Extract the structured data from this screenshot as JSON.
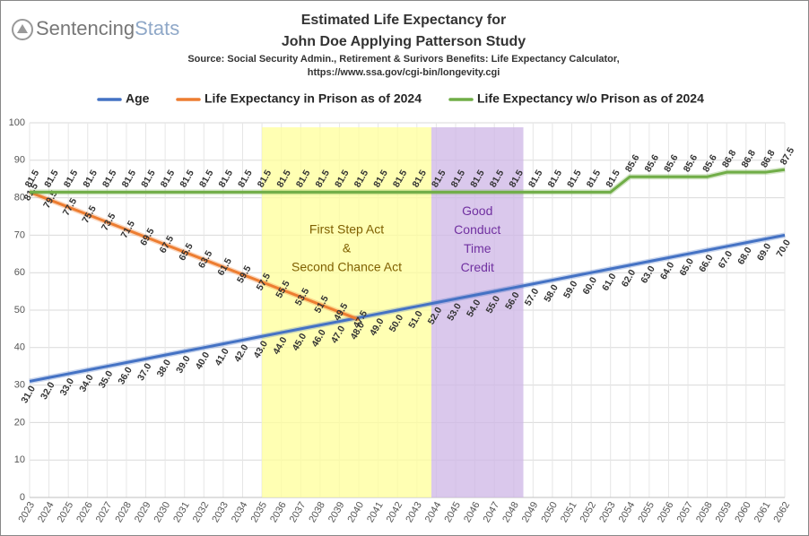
{
  "chart_data": {
    "type": "line",
    "logo": [
      "Sentencing",
      "Stats"
    ],
    "title": [
      "Estimated Life Expectancy for",
      "John Doe Applying Patterson Study"
    ],
    "subtitle": [
      "Source: Social Security Admin., Retirement & Surivors Benefits: Life Expectancy Calculator,",
      "https://www.ssa.gov/cgi-bin/longevity.cgi"
    ],
    "x": [
      2023,
      2024,
      2025,
      2026,
      2027,
      2028,
      2029,
      2030,
      2031,
      2032,
      2033,
      2034,
      2035,
      2036,
      2037,
      2038,
      2039,
      2040,
      2041,
      2042,
      2043,
      2044,
      2045,
      2046,
      2047,
      2048,
      2049,
      2050,
      2051,
      2052,
      2053,
      2054,
      2055,
      2056,
      2057,
      2058,
      2059,
      2060,
      2061,
      2062
    ],
    "xlim": [
      2023,
      2062
    ],
    "xticks": [
      2023,
      2024,
      2025,
      2026,
      2027,
      2028,
      2029,
      2030,
      2031,
      2032,
      2033,
      2034,
      2035,
      2036,
      2037,
      2038,
      2039,
      2040,
      2041,
      2042,
      2043,
      2044,
      2045,
      2046,
      2047,
      2048,
      2049,
      2050,
      2051,
      2052,
      2053,
      2054,
      2055,
      2056,
      2057,
      2058,
      2059,
      2060,
      2061,
      2062
    ],
    "ylim": [
      0,
      100
    ],
    "yticks": [
      0,
      10,
      20,
      30,
      40,
      50,
      60,
      70,
      80,
      90,
      100
    ],
    "grid": true,
    "legend": "top",
    "regions": [
      {
        "from": 2035,
        "to": 2043.75,
        "color": "#ffff99",
        "text_color": "#7f6000",
        "label": [
          "First Step Act",
          "&",
          "Second Chance Act"
        ]
      },
      {
        "from": 2043.75,
        "to": 2048.5,
        "color": "#cdb6e6",
        "text_color": "#7030a0",
        "label": [
          "Good",
          "Conduct",
          "Time",
          "Credit"
        ]
      }
    ],
    "series": [
      {
        "name": "Age",
        "color": "#4472c4",
        "values": [
          31,
          32,
          33,
          34,
          35,
          36,
          37,
          38,
          39,
          40,
          41,
          42,
          43,
          44,
          45,
          46,
          47,
          48,
          49,
          50,
          51,
          52,
          53,
          54,
          55,
          56,
          57,
          58,
          59,
          60,
          61,
          62,
          63,
          64,
          65,
          66,
          67,
          68,
          69,
          70
        ],
        "value_labels": [
          "31.0",
          "32.0",
          "33.0",
          "34.0",
          "35.0",
          "36.0",
          "37.0",
          "38.0",
          "39.0",
          "40.0",
          "41.0",
          "42.0",
          "43.0",
          "44.0",
          "45.0",
          "46.0",
          "47.0",
          "48.0",
          "49.0",
          "50.0",
          "51.0",
          "52.0",
          "53.0",
          "54.0",
          "55.0",
          "56.0",
          "57.0",
          "58.0",
          "59.0",
          "60.0",
          "61.0",
          "62.0",
          "63.0",
          "64.0",
          "65.0",
          "66.0",
          "67.0",
          "68.0",
          "69.0",
          "70.0"
        ]
      },
      {
        "name": "Life Expectancy in Prison as of 2024",
        "color": "#ed7d31",
        "values": [
          81.5,
          79.5,
          77.5,
          75.5,
          73.5,
          71.5,
          69.5,
          67.5,
          65.5,
          63.5,
          61.5,
          59.5,
          57.5,
          55.5,
          53.5,
          51.5,
          49.5,
          47.5,
          null,
          null,
          null,
          null,
          null,
          null,
          null,
          null,
          null,
          null,
          null,
          null,
          null,
          null,
          null,
          null,
          null,
          null,
          null,
          null,
          null,
          null
        ]
      },
      {
        "name": "Life Expectancy w/o Prison as of 2024",
        "color": "#70ad47",
        "values": [
          81.5,
          81.5,
          81.5,
          81.5,
          81.5,
          81.5,
          81.5,
          81.5,
          81.5,
          81.5,
          81.5,
          81.5,
          81.5,
          81.5,
          81.5,
          81.5,
          81.5,
          81.5,
          81.5,
          81.5,
          81.5,
          81.5,
          81.5,
          81.5,
          81.5,
          81.5,
          81.5,
          81.5,
          81.5,
          81.5,
          81.5,
          85.6,
          85.6,
          85.6,
          85.6,
          85.6,
          86.8,
          86.8,
          86.8,
          87.5
        ]
      }
    ]
  }
}
